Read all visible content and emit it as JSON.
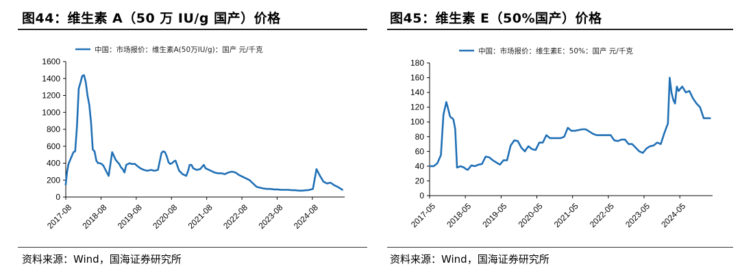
{
  "panels": [
    {
      "title": "图44：维生素 A（50 万 IU/g 国产）价格",
      "source": "资料来源：Wind，国海证券研究所"
    },
    {
      "title": "图45：维生素 E（50%国产）价格",
      "source": "资料来源：Wind，国海证券研究所"
    }
  ],
  "colors": {
    "line": "#1f6fb5",
    "axis": "#000000",
    "grid": "#d9d9d9"
  },
  "chart_data": [
    {
      "type": "line",
      "title": "",
      "legend_position": "top",
      "grid": false,
      "ylim": [
        0,
        1600
      ],
      "yticks": [
        0,
        200,
        400,
        600,
        800,
        1000,
        1200,
        1400,
        1600
      ],
      "xlim": [
        2017.583,
        2025.5
      ],
      "xticks": [
        "2017-08",
        "2018-08",
        "2019-08",
        "2020-08",
        "2021-08",
        "2022-08",
        "2023-08",
        "2024-08"
      ],
      "series": [
        {
          "name": "中国：市场报价：维生素A(50万IU/g)：国产 元/千克",
          "x": [
            2017.58,
            2017.62,
            2017.66,
            2017.7,
            2017.75,
            2017.8,
            2017.85,
            2017.9,
            2017.95,
            2018.0,
            2018.05,
            2018.1,
            2018.15,
            2018.2,
            2018.25,
            2018.3,
            2018.35,
            2018.4,
            2018.45,
            2018.5,
            2018.55,
            2018.6,
            2018.65,
            2018.7,
            2018.75,
            2018.8,
            2018.9,
            2019.0,
            2019.1,
            2019.15,
            2019.2,
            2019.25,
            2019.3,
            2019.4,
            2019.45,
            2019.5,
            2019.55,
            2019.6,
            2019.7,
            2019.8,
            2019.9,
            2020.0,
            2020.1,
            2020.2,
            2020.3,
            2020.35,
            2020.4,
            2020.45,
            2020.5,
            2020.55,
            2020.6,
            2020.65,
            2020.7,
            2020.8,
            2020.9,
            2021.0,
            2021.05,
            2021.1,
            2021.15,
            2021.2,
            2021.3,
            2021.4,
            2021.5,
            2021.55,
            2021.6,
            2021.7,
            2021.8,
            2021.9,
            2022.0,
            2022.1,
            2022.2,
            2022.3,
            2022.4,
            2022.5,
            2022.6,
            2022.7,
            2022.8,
            2022.9,
            2023.0,
            2023.1,
            2023.2,
            2023.3,
            2023.4,
            2023.5,
            2023.6,
            2023.7,
            2023.8,
            2023.9,
            2024.0,
            2024.1,
            2024.2,
            2024.3,
            2024.4,
            2024.45,
            2024.5,
            2024.55,
            2024.6,
            2024.7,
            2024.8,
            2024.9,
            2025.0,
            2025.1,
            2025.2,
            2025.3,
            2025.4,
            2025.45
          ],
          "values": [
            140,
            300,
            390,
            430,
            480,
            530,
            540,
            830,
            1280,
            1350,
            1430,
            1440,
            1360,
            1200,
            1090,
            880,
            560,
            540,
            430,
            400,
            400,
            390,
            370,
            330,
            290,
            250,
            530,
            440,
            390,
            350,
            330,
            290,
            380,
            400,
            390,
            390,
            390,
            370,
            340,
            320,
            310,
            320,
            310,
            320,
            520,
            540,
            530,
            480,
            410,
            390,
            400,
            420,
            430,
            310,
            270,
            250,
            300,
            380,
            380,
            340,
            320,
            330,
            380,
            340,
            330,
            310,
            290,
            280,
            280,
            270,
            290,
            300,
            290,
            260,
            240,
            220,
            200,
            160,
            120,
            110,
            100,
            95,
            95,
            90,
            90,
            85,
            85,
            85,
            80,
            80,
            75,
            75,
            80,
            80,
            85,
            90,
            95,
            330,
            250,
            180,
            160,
            170,
            140,
            120,
            95,
            80
          ]
        }
      ]
    },
    {
      "type": "line",
      "title": "",
      "legend_position": "top",
      "grid": false,
      "ylim": [
        0,
        180
      ],
      "yticks": [
        0,
        20,
        40,
        60,
        80,
        100,
        120,
        140,
        160,
        180
      ],
      "xlim": [
        2017.333,
        2025.25
      ],
      "xticks": [
        "2017-05",
        "2018-05",
        "2019-05",
        "2020-05",
        "2021-05",
        "2022-05",
        "2023-05",
        "2024-05"
      ],
      "series": [
        {
          "name": "中国：市场报价：维生素E：50%：国产 元/千克",
          "x": [
            2017.33,
            2017.45,
            2017.55,
            2017.65,
            2017.72,
            2017.8,
            2017.85,
            2017.9,
            2017.93,
            2017.97,
            2018.0,
            2018.05,
            2018.1,
            2018.2,
            2018.3,
            2018.35,
            2018.4,
            2018.5,
            2018.6,
            2018.7,
            2018.8,
            2018.9,
            2019.0,
            2019.1,
            2019.2,
            2019.3,
            2019.4,
            2019.5,
            2019.6,
            2019.7,
            2019.8,
            2019.9,
            2020.0,
            2020.05,
            2020.1,
            2020.2,
            2020.3,
            2020.4,
            2020.5,
            2020.6,
            2020.7,
            2020.8,
            2020.9,
            2021.0,
            2021.1,
            2021.2,
            2021.3,
            2021.4,
            2021.5,
            2021.6,
            2021.7,
            2021.8,
            2021.9,
            2022.0,
            2022.1,
            2022.2,
            2022.3,
            2022.4,
            2022.5,
            2022.6,
            2022.7,
            2022.8,
            2022.9,
            2023.0,
            2023.1,
            2023.2,
            2023.3,
            2023.4,
            2023.5,
            2023.6,
            2023.7,
            2023.8,
            2023.9,
            2024.0,
            2024.05,
            2024.1,
            2024.15,
            2024.2,
            2024.25,
            2024.3,
            2024.4,
            2024.5,
            2024.6,
            2024.7,
            2024.8,
            2024.9,
            2025.0,
            2025.1,
            2025.2
          ],
          "values": [
            40,
            40,
            44,
            55,
            110,
            127,
            118,
            108,
            106,
            105,
            103,
            90,
            38,
            40,
            38,
            36,
            35,
            41,
            40,
            42,
            43,
            53,
            52,
            48,
            45,
            42,
            48,
            48,
            68,
            75,
            74,
            65,
            60,
            64,
            67,
            63,
            62,
            72,
            72,
            82,
            78,
            78,
            78,
            78,
            80,
            92,
            88,
            88,
            89,
            90,
            90,
            87,
            84,
            82,
            82,
            82,
            82,
            82,
            75,
            74,
            76,
            76,
            70,
            70,
            65,
            60,
            58,
            64,
            67,
            68,
            72,
            70,
            85,
            98,
            160,
            140,
            130,
            125,
            148,
            142,
            148,
            140,
            142,
            132,
            125,
            120,
            105,
            105,
            105
          ]
        }
      ]
    }
  ]
}
